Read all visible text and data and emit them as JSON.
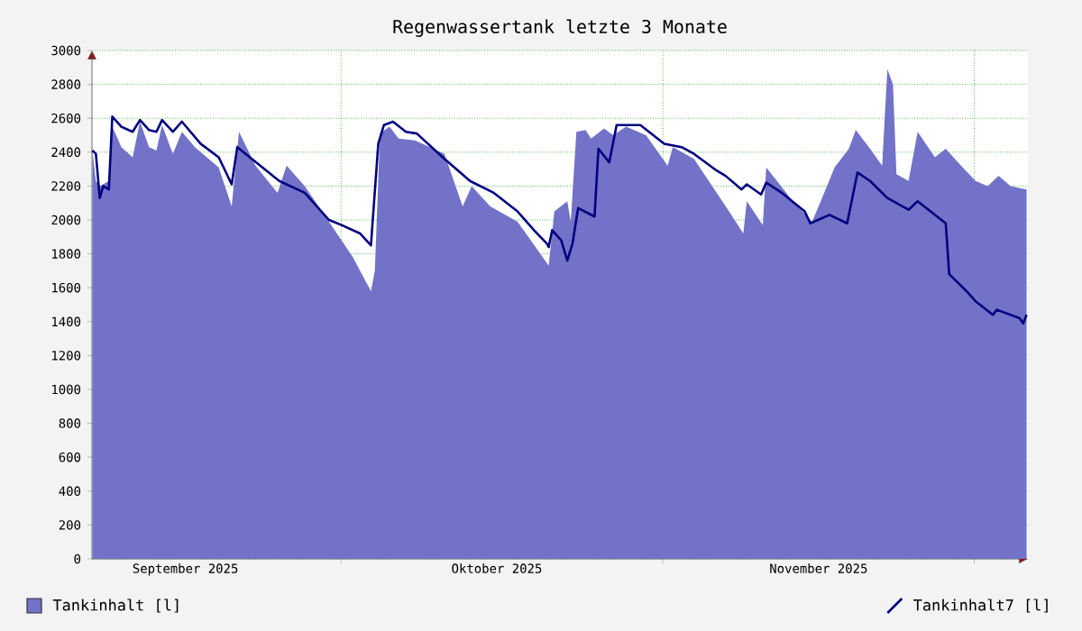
{
  "chart_data": {
    "type": "area",
    "title": "Regenwassertank letzte 3 Monate",
    "xlim": [
      "2025-09-07",
      "2025-12-06T04:00"
    ],
    "xticks": [
      {
        "value": "2025-09-16",
        "label": "September 2025"
      },
      {
        "value": "2025-10-01",
        "label": null
      },
      {
        "value": "2025-10-16",
        "label": "Oktober 2025"
      },
      {
        "value": "2025-11-01",
        "label": null
      },
      {
        "value": "2025-11-16",
        "label": "November 2025"
      },
      {
        "value": "2025-12-01",
        "label": null
      }
    ],
    "ylim": [
      0,
      3000
    ],
    "yticks": [
      0,
      200,
      400,
      600,
      800,
      1000,
      1200,
      1400,
      1600,
      1800,
      2000,
      2200,
      2400,
      2600,
      2800,
      3000
    ],
    "grid": true,
    "legend": "bottom",
    "series": [
      {
        "name": "Tankinhalt [l]",
        "color": "#7272c8",
        "x": [
          "2025-09-07T01:00",
          "2025-09-07T09:00",
          "2025-09-07T18:00",
          "2025-09-08T15:00",
          "2025-09-08T23:00",
          "2025-09-09T20:00",
          "2025-09-10T22:00",
          "2025-09-11T15:00",
          "2025-09-12T12:00",
          "2025-09-13T05:00",
          "2025-09-13T18:00",
          "2025-09-14T19:00",
          "2025-09-15T16:00",
          "2025-09-16T22:00",
          "2025-09-19T05:00",
          "2025-09-20T11:00",
          "2025-09-21T04:00",
          "2025-09-22T18:00",
          "2025-09-24T21:00",
          "2025-09-25T18:00",
          "2025-09-27T12:00",
          "2025-09-29T20:00",
          "2025-10-02T03:00",
          "2025-10-03T21:00",
          "2025-10-04T06:00",
          "2025-10-04T18:00",
          "2025-10-05T16:00",
          "2025-10-06T13:00",
          "2025-10-08T03:00",
          "2025-10-10T23:00",
          "2025-10-12T17:00",
          "2025-10-13T14:00",
          "2025-10-15T09:00",
          "2025-10-18T00:00",
          "2025-10-21T00:00",
          "2025-10-21T13:00",
          "2025-10-22T19:00",
          "2025-10-23T03:00",
          "2025-10-23T16:00",
          "2025-10-24T13:00",
          "2025-10-25T02:00",
          "2025-10-26T08:00",
          "2025-10-27T05:00",
          "2025-10-28T11:00",
          "2025-10-30T09:00",
          "2025-11-01T11:00",
          "2025-11-01T23:00",
          "2025-11-04T00:00",
          "2025-11-07T09:00",
          "2025-11-08T18:00",
          "2025-11-09T02:00",
          "2025-11-10T15:00",
          "2025-11-10T23:00",
          "2025-11-13T16:00",
          "2025-11-15T09:00",
          "2025-11-16T05:00",
          "2025-11-17T13:00",
          "2025-11-18T22:00",
          "2025-11-19T14:00",
          "2025-11-20T23:00",
          "2025-11-22T03:00",
          "2025-11-22T15:00",
          "2025-11-23T04:00",
          "2025-11-23T12:00",
          "2025-11-24T16:00",
          "2025-11-25T13:00",
          "2025-11-27T05:00",
          "2025-11-28T06:00",
          "2025-11-29T10:00",
          "2025-12-01T03:00",
          "2025-12-02T07:00",
          "2025-12-03T08:00",
          "2025-12-04T12:00",
          "2025-12-06T01:00"
        ],
        "values": [
          2410,
          2230,
          2200,
          2230,
          2550,
          2430,
          2370,
          2580,
          2430,
          2410,
          2560,
          2390,
          2520,
          2430,
          2310,
          2080,
          2520,
          2320,
          2160,
          2320,
          2200,
          1990,
          1780,
          1580,
          1700,
          2510,
          2550,
          2480,
          2470,
          2390,
          2080,
          2200,
          2080,
          1990,
          1730,
          2050,
          2110,
          1990,
          2520,
          2530,
          2480,
          2540,
          2500,
          2550,
          2500,
          2320,
          2430,
          2360,
          2050,
          1920,
          2110,
          1970,
          2310,
          2100,
          1990,
          2110,
          2310,
          2420,
          2530,
          2420,
          2320,
          2890,
          2800,
          2270,
          2230,
          2520,
          2370,
          2420,
          2340,
          2230,
          2200,
          2260,
          2200,
          2180
        ]
      },
      {
        "name": "Tankinhalt7 [l]",
        "type": "line",
        "color": "#00007f",
        "x": [
          "2025-09-07T01:00",
          "2025-09-07T09:00",
          "2025-09-07T18:00",
          "2025-09-08T02:00",
          "2025-09-08T15:00",
          "2025-09-08T23:00",
          "2025-09-09T20:00",
          "2025-09-10T22:00",
          "2025-09-11T15:00",
          "2025-09-12T12:00",
          "2025-09-13T05:00",
          "2025-09-13T18:00",
          "2025-09-14T19:00",
          "2025-09-15T16:00",
          "2025-09-17T11:00",
          "2025-09-19T05:00",
          "2025-09-20T11:00",
          "2025-09-21T00:00",
          "2025-09-22T05:00",
          "2025-09-25T01:00",
          "2025-09-27T12:00",
          "2025-09-29T20:00",
          "2025-10-01T01:00",
          "2025-10-02T20:00",
          "2025-10-03T21:00",
          "2025-10-04T14:00",
          "2025-10-05T03:00",
          "2025-10-06T00:00",
          "2025-10-07T06:00",
          "2025-10-08T07:00",
          "2025-10-10T23:00",
          "2025-10-13T10:00",
          "2025-10-15T17:00",
          "2025-10-18T00:00",
          "2025-10-19T14:00",
          "2025-10-20T20:00",
          "2025-10-21T00:00",
          "2025-10-21T08:00",
          "2025-10-22T05:00",
          "2025-10-22T19:00",
          "2025-10-23T07:00",
          "2025-10-23T20:00",
          "2025-10-25T10:00",
          "2025-10-25T19:00",
          "2025-10-26T20:00",
          "2025-10-27T13:00",
          "2025-10-29T20:00",
          "2025-11-01T03:00",
          "2025-11-02T19:00",
          "2025-11-04T00:00",
          "2025-11-06T05:00",
          "2025-11-07T01:00",
          "2025-11-08T14:00",
          "2025-11-09T02:00",
          "2025-11-10T11:00",
          "2025-11-10T23:00",
          "2025-11-12T11:00",
          "2025-11-14T16:00",
          "2025-11-15T05:00",
          "2025-11-17T01:00",
          "2025-11-18T18:00",
          "2025-11-19T18:00",
          "2025-11-20T23:00",
          "2025-11-22T15:00",
          "2025-11-24T16:00",
          "2025-11-25T13:00",
          "2025-11-28T06:00",
          "2025-11-28T14:00",
          "2025-11-30T06:00",
          "2025-12-01T03:00",
          "2025-12-02T19:00",
          "2025-12-03T04:00",
          "2025-12-05T09:00",
          "2025-12-05T17:00",
          "2025-12-06T01:00"
        ],
        "values": [
          2410,
          2390,
          2130,
          2200,
          2180,
          2610,
          2550,
          2520,
          2590,
          2530,
          2520,
          2590,
          2520,
          2580,
          2450,
          2370,
          2210,
          2430,
          2370,
          2230,
          2160,
          2000,
          1970,
          1920,
          1850,
          2450,
          2560,
          2580,
          2520,
          2510,
          2360,
          2230,
          2160,
          2050,
          1940,
          1860,
          1840,
          1940,
          1880,
          1760,
          1860,
          2070,
          2020,
          2420,
          2340,
          2560,
          2560,
          2450,
          2430,
          2390,
          2290,
          2260,
          2180,
          2210,
          2150,
          2220,
          2160,
          2050,
          1980,
          2030,
          1980,
          2280,
          2230,
          2130,
          2060,
          2110,
          1980,
          1680,
          1580,
          1520,
          1440,
          1470,
          1420,
          1390,
          1440
        ]
      }
    ]
  }
}
